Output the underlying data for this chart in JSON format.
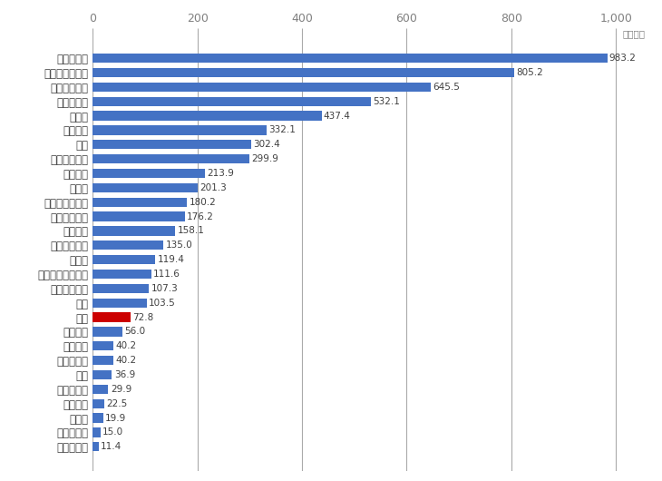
{
  "categories": [
    "ノルウェー",
    "ルクセンブルク",
    "スウェーデン",
    "デンマーク",
    "スイス",
    "オランダ",
    "英国",
    "フィンランド",
    "ベルギー",
    "ドイツ",
    "オーストラリア",
    "アイルランド",
    "フランス",
    "オーストリア",
    "カナダ",
    "ニュージーランド",
    "アイスランド",
    "米国",
    "日本",
    "イタリア",
    "スペイン",
    "ポルトガル",
    "韓国",
    "スロベニア",
    "ギリシャ",
    "チェコ",
    "スロバキア",
    "ポーランド"
  ],
  "values": [
    983.2,
    805.2,
    645.5,
    532.1,
    437.4,
    332.1,
    302.4,
    299.9,
    213.9,
    201.3,
    180.2,
    176.2,
    158.1,
    135.0,
    119.4,
    111.6,
    107.3,
    103.5,
    72.8,
    56.0,
    40.2,
    40.2,
    36.9,
    29.9,
    22.5,
    19.9,
    15.0,
    11.4
  ],
  "bar_colors": [
    "#4472c4",
    "#4472c4",
    "#4472c4",
    "#4472c4",
    "#4472c4",
    "#4472c4",
    "#4472c4",
    "#4472c4",
    "#4472c4",
    "#4472c4",
    "#4472c4",
    "#4472c4",
    "#4472c4",
    "#4472c4",
    "#4472c4",
    "#4472c4",
    "#4472c4",
    "#4472c4",
    "#cc0000",
    "#4472c4",
    "#4472c4",
    "#4472c4",
    "#4472c4",
    "#4472c4",
    "#4472c4",
    "#4472c4",
    "#4472c4",
    "#4472c4"
  ],
  "xlim": [
    0,
    1050
  ],
  "xticks": [
    0,
    200,
    400,
    600,
    800,
    1000
  ],
  "xtick_labels": [
    "0",
    "200",
    "400",
    "600",
    "800",
    "1,000"
  ],
  "unit_label": "（ドル）",
  "background_color": "#ffffff",
  "bar_height": 0.65,
  "label_fontsize": 8.5,
  "tick_fontsize": 9.0,
  "value_fontsize": 7.5,
  "unit_fontsize": 7.5,
  "grid_color": "#aaaaaa",
  "label_color": "#404040",
  "tick_color": "#808080"
}
